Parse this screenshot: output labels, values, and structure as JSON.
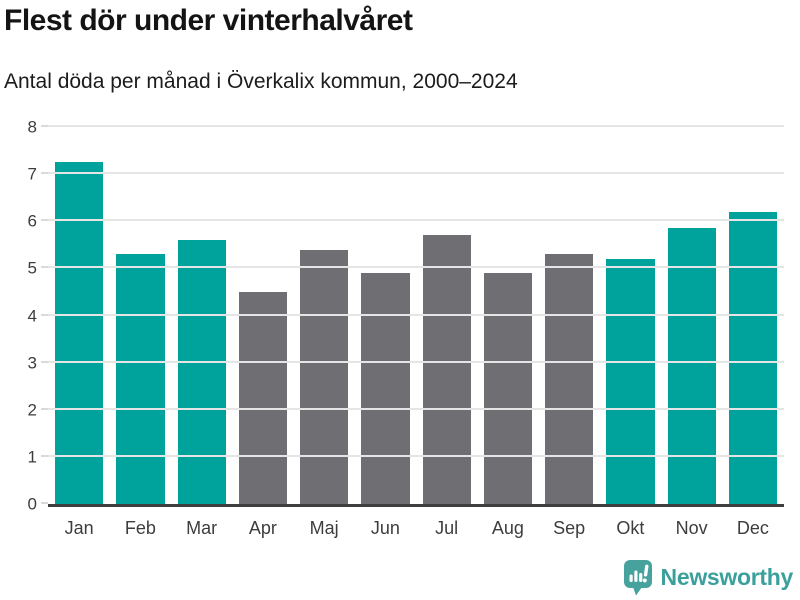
{
  "header": {
    "title": "Flest dör under vinterhalvåret",
    "subtitle": "Antal döda per månad i Överkalix kommun, 2000–2024"
  },
  "chart_data": {
    "type": "bar",
    "title": "Flest dör under vinterhalvåret",
    "subtitle": "Antal döda per månad i Överkalix kommun, 2000–2024",
    "categories": [
      "Jan",
      "Feb",
      "Mar",
      "Apr",
      "Maj",
      "Jun",
      "Jul",
      "Aug",
      "Sep",
      "Okt",
      "Nov",
      "Dec"
    ],
    "values": [
      7.25,
      5.3,
      5.6,
      4.5,
      5.4,
      4.9,
      5.7,
      4.9,
      5.3,
      5.2,
      5.85,
      6.2
    ],
    "highlighted": [
      true,
      true,
      true,
      false,
      false,
      false,
      false,
      false,
      false,
      true,
      true,
      true
    ],
    "xlabel": "",
    "ylabel": "",
    "ylim": [
      0,
      8
    ],
    "yticks": [
      0,
      1,
      2,
      3,
      4,
      5,
      6,
      7,
      8
    ],
    "grid": true,
    "legend": "none",
    "colors": {
      "highlight": "#00a39c",
      "muted": "#6e6e73",
      "gridline": "#e5e5e5",
      "axis_line": "#3f3f3f",
      "axis_text": "#3d3d3d"
    }
  },
  "footer": {
    "brand": "Newsworthy",
    "logo_icon": "bar-chart-speech-bubble-icon",
    "brand_color": "#3ba09b"
  }
}
